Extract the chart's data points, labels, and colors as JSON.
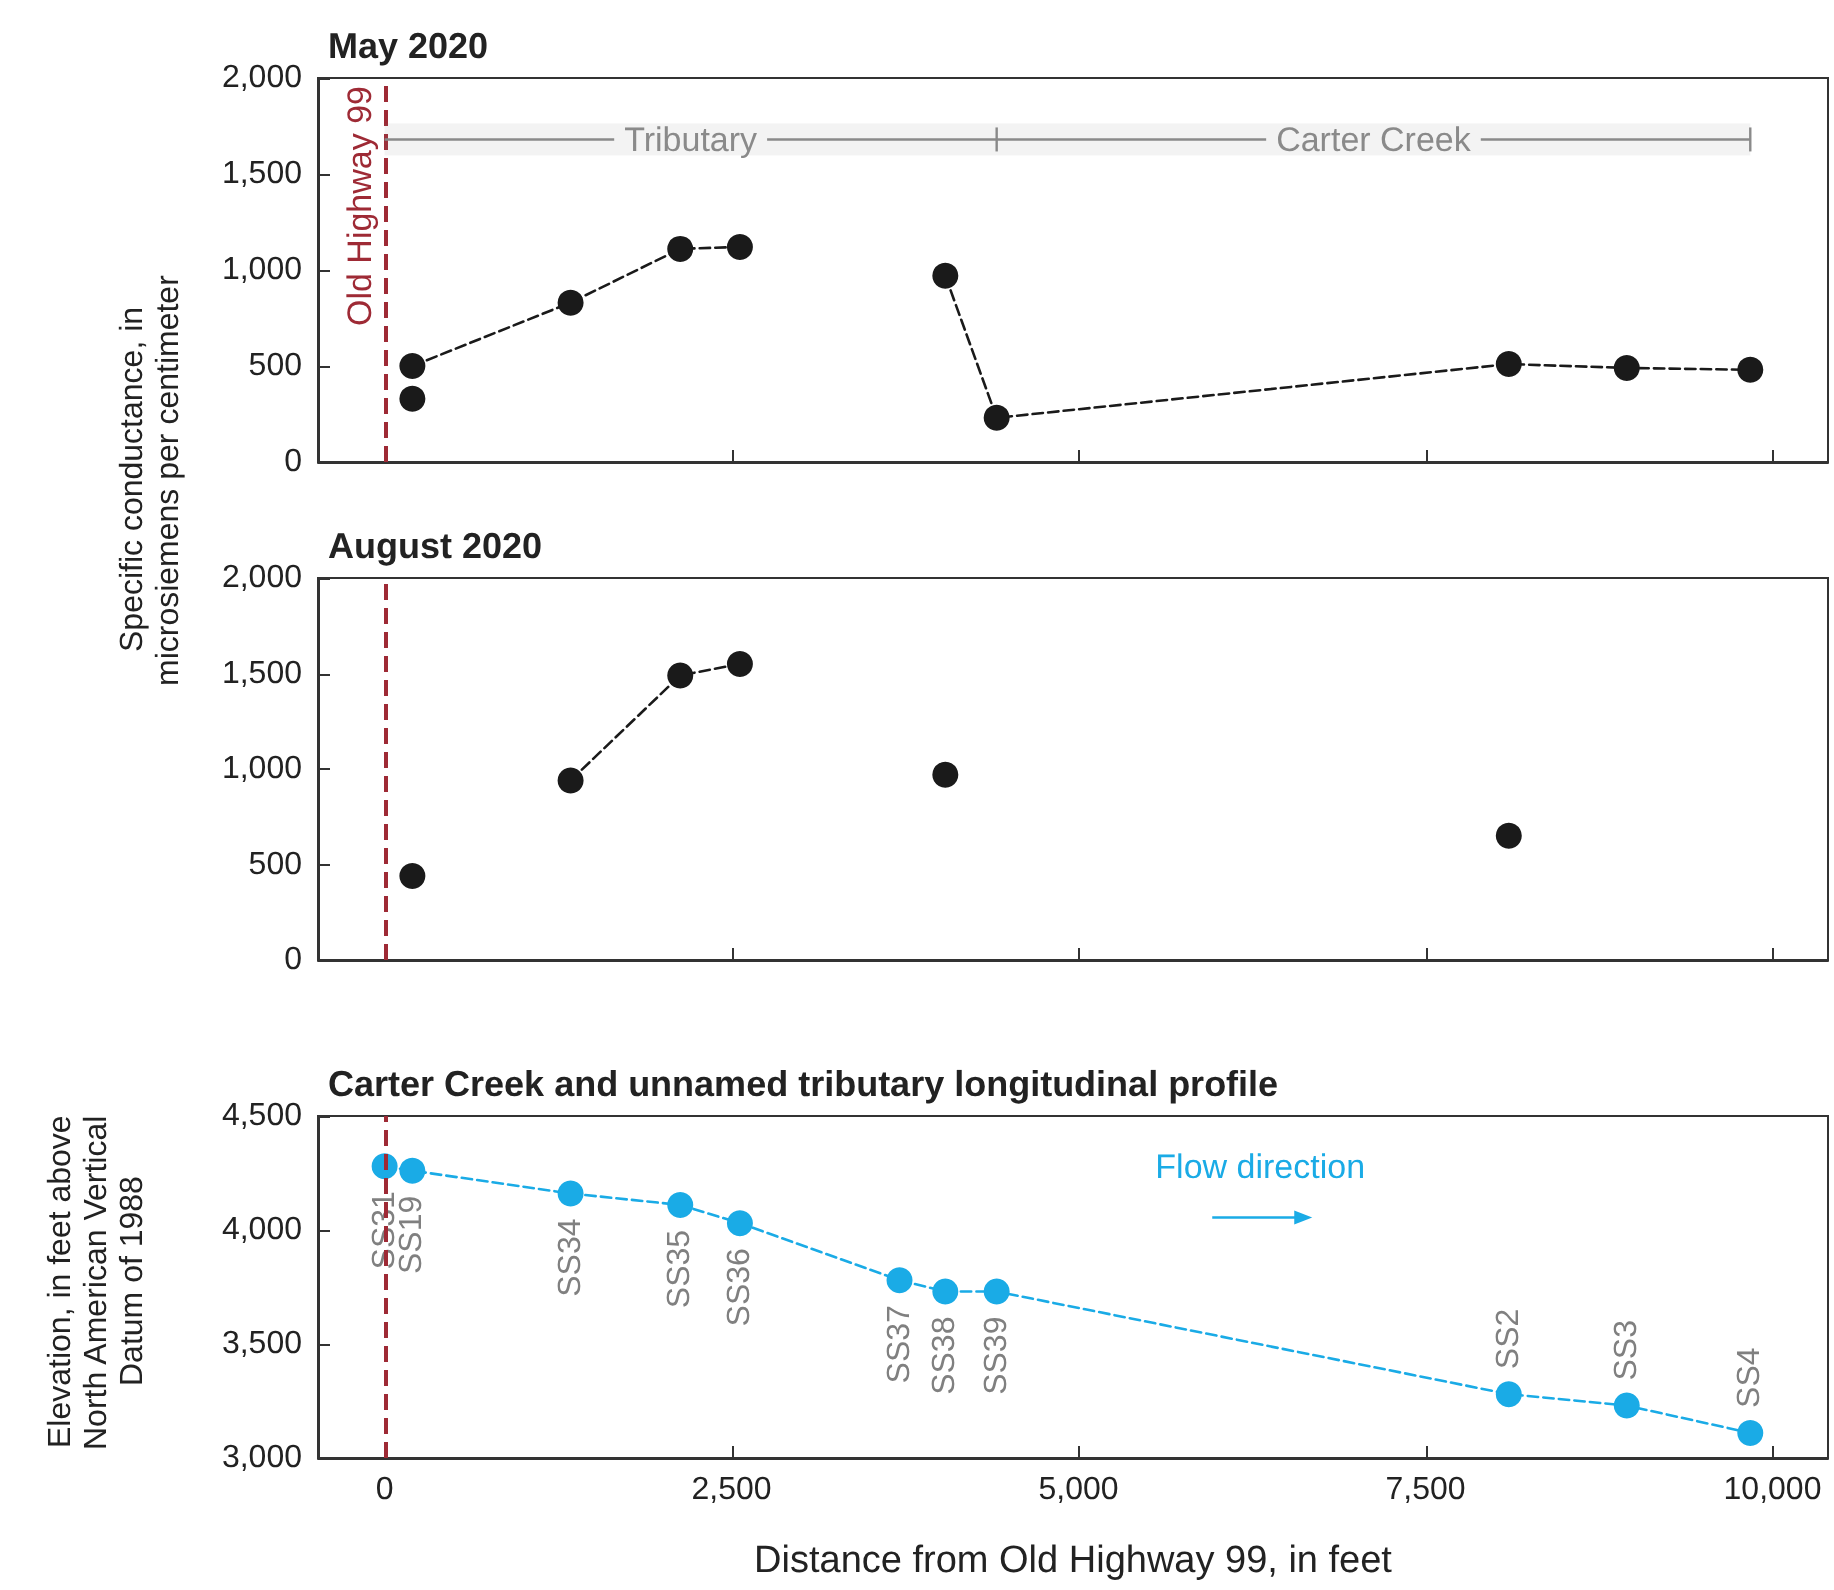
{
  "chart_data": [
    {
      "type": "line",
      "title": "May 2020",
      "ylabel": "Specific conductance, in microsiemens per centimeter",
      "xlim": [
        -480,
        10400
      ],
      "ylim": [
        0,
        2000
      ],
      "xticks": [
        {
          "value": 0,
          "label": null
        },
        {
          "value": 2500,
          "label": null
        },
        {
          "value": 5000,
          "label": null
        },
        {
          "value": 7500,
          "label": null
        },
        {
          "value": 10000,
          "label": null
        }
      ],
      "yticks": [
        {
          "value": 0,
          "label": "0"
        },
        {
          "value": 500,
          "label": "500"
        },
        {
          "value": 1000,
          "label": "1,000"
        },
        {
          "value": 1500,
          "label": "1,500"
        },
        {
          "value": 2000,
          "label": "2,000"
        }
      ],
      "tick_labels": "y",
      "grid": false,
      "marker": "circle",
      "line_style": "dashed",
      "ref_lines": [
        {
          "axis": "x",
          "value": 0,
          "label": "Old Highway 99",
          "color": "#9e2a35",
          "line_style": "dashed"
        }
      ],
      "bands": [
        {
          "axis": "x",
          "from": 0,
          "to": 4410,
          "label": "Tributary",
          "color": "#8a8a8a"
        },
        {
          "axis": "x",
          "from": 4410,
          "to": 9840,
          "label": "Carter Creek",
          "color": "#8a8a8a"
        }
      ],
      "series": [
        {
          "color": "#1a1a1a",
          "x": [
            200,
            1340,
            2130,
            2560
          ],
          "values": [
            500,
            830,
            1110,
            1120
          ]
        },
        {
          "color": "#1a1a1a",
          "x": [
            4040,
            4410,
            8100,
            8950,
            9840
          ],
          "values": [
            970,
            230,
            510,
            490,
            480
          ]
        },
        {
          "type": "scatter",
          "color": "#1a1a1a",
          "x": [
            200
          ],
          "values": [
            330
          ]
        }
      ]
    },
    {
      "type": "line",
      "title": "August 2020",
      "xlim": [
        -480,
        10400
      ],
      "ylim": [
        0,
        2000
      ],
      "xticks": [
        {
          "value": 0,
          "label": null
        },
        {
          "value": 2500,
          "label": null
        },
        {
          "value": 5000,
          "label": null
        },
        {
          "value": 7500,
          "label": null
        },
        {
          "value": 10000,
          "label": null
        }
      ],
      "yticks": [
        {
          "value": 0,
          "label": "0"
        },
        {
          "value": 500,
          "label": "500"
        },
        {
          "value": 1000,
          "label": "1,000"
        },
        {
          "value": 1500,
          "label": "1,500"
        },
        {
          "value": 2000,
          "label": "2,000"
        }
      ],
      "tick_labels": "y",
      "grid": false,
      "marker": "circle",
      "line_style": "dashed",
      "ref_lines": [
        {
          "axis": "x",
          "value": 0,
          "color": "#9e2a35",
          "line_style": "dashed"
        }
      ],
      "series": [
        {
          "color": "#1a1a1a",
          "x": [
            1340,
            2130,
            2560
          ],
          "values": [
            940,
            1490,
            1550
          ]
        },
        {
          "type": "scatter",
          "color": "#1a1a1a",
          "x": [
            200,
            4040,
            8100
          ],
          "values": [
            440,
            970,
            650
          ]
        }
      ]
    },
    {
      "type": "line",
      "title": "Carter Creek and unnamed tributary longitudinal profile",
      "xlabel": "Distance from Old Highway 99, in feet",
      "ylabel": "Elevation, in feet above North American Vertical Datum of 1988",
      "xlim": [
        -480,
        10400
      ],
      "ylim": [
        3000,
        4500
      ],
      "xticks": [
        0,
        {
          "value": 2500,
          "label": "2,500"
        },
        {
          "value": 5000,
          "label": "5,000"
        },
        {
          "value": 7500,
          "label": "7,500"
        },
        {
          "value": 10000,
          "label": "10,000"
        }
      ],
      "yticks": [
        {
          "value": 3000,
          "label": "3,000"
        },
        {
          "value": 3500,
          "label": "3,500"
        },
        {
          "value": 4000,
          "label": "4,000"
        },
        {
          "value": 4500,
          "label": "4,500"
        }
      ],
      "grid": false,
      "marker": "circle",
      "line_style": "dashed",
      "ref_lines": [
        {
          "axis": "x",
          "value": 0,
          "color": "#9e2a35",
          "line_style": "dashed"
        }
      ],
      "annotations": [
        "Flow direction"
      ],
      "series": [
        {
          "color": "#1aabe6",
          "x": [
            0,
            200,
            1340,
            2130,
            2560,
            3710,
            4040,
            4410,
            8100,
            8950,
            9840
          ],
          "values": [
            4280,
            4260,
            4160,
            4110,
            4030,
            3780,
            3730,
            3730,
            3280,
            3230,
            3110
          ],
          "value_labels": [
            "SS31",
            "SS19",
            "SS34",
            "SS35",
            "SS36",
            "SS37",
            "SS38",
            "SS39",
            "SS2",
            "SS3",
            "SS4"
          ]
        }
      ]
    }
  ]
}
